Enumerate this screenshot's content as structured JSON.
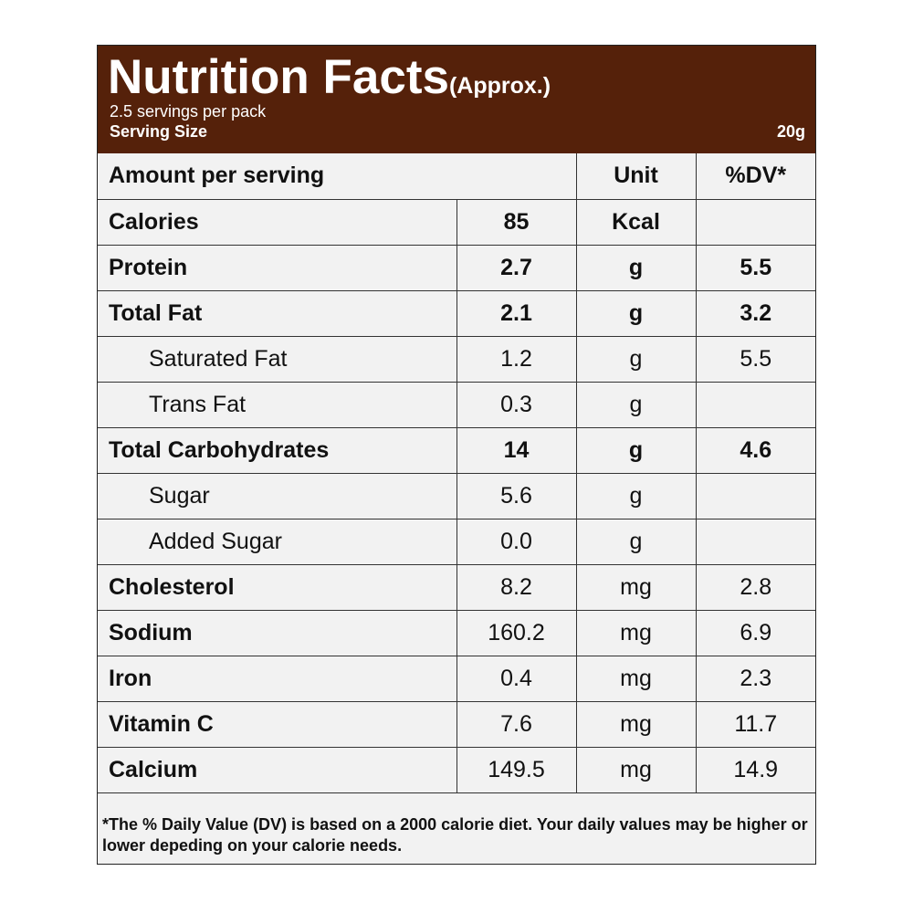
{
  "header": {
    "title": "Nutrition Facts",
    "approx": "(Approx.)",
    "servings_per_pack": "2.5 servings per pack",
    "serving_size_label": "Serving Size",
    "serving_size_value": "20g"
  },
  "table": {
    "header": {
      "amount_label": "Amount per serving",
      "unit_label": "Unit",
      "dv_label": "%DV*"
    },
    "calories": {
      "name": "Calories",
      "value": "85",
      "unit": "Kcal",
      "dv": ""
    },
    "rows": [
      {
        "name": "Protein",
        "value": "2.7",
        "unit": "g",
        "dv": "5.5"
      },
      {
        "name": "Total Fat",
        "value": "2.1",
        "unit": "g",
        "dv": "3.2"
      },
      {
        "name": "Saturated Fat",
        "value": "1.2",
        "unit": "g",
        "dv": "5.5"
      },
      {
        "name": "Trans Fat",
        "value": "0.3",
        "unit": "g",
        "dv": ""
      },
      {
        "name": "Total Carbohydrates",
        "value": "14",
        "unit": "g",
        "dv": "4.6"
      },
      {
        "name": "Sugar",
        "value": "5.6",
        "unit": "g",
        "dv": ""
      },
      {
        "name": "Added Sugar",
        "value": "0.0",
        "unit": "g",
        "dv": ""
      },
      {
        "name": "Cholesterol",
        "value": "8.2",
        "unit": "mg",
        "dv": "2.8"
      },
      {
        "name": "Sodium",
        "value": "160.2",
        "unit": "mg",
        "dv": "6.9"
      },
      {
        "name": "Iron",
        "value": "0.4",
        "unit": "mg",
        "dv": "2.3"
      },
      {
        "name": "Vitamin C",
        "value": "7.6",
        "unit": "mg",
        "dv": "11.7"
      },
      {
        "name": "Calcium",
        "value": "149.5",
        "unit": "mg",
        "dv": "14.9"
      }
    ]
  },
  "footnote": "*The % Daily Value (DV) is based on a 2000 calorie diet. Your daily values may be higher or lower depeding on your calorie needs.",
  "colors": {
    "header_bg": "#55210a",
    "panel_bg": "#f2f2f2"
  }
}
